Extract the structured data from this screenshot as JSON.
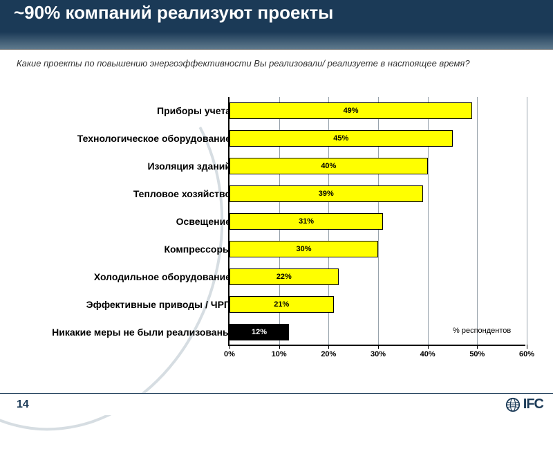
{
  "header": {
    "title": "~90% компаний реализуют проекты"
  },
  "subtitle": "Какие проекты по повышению энергоэффективности Вы реализовали/ реализуете в настоящее время?",
  "chart": {
    "type": "bar-horizontal",
    "xlim": [
      0,
      60
    ],
    "xtick_step": 10,
    "xtick_labels": [
      "0%",
      "10%",
      "20%",
      "30%",
      "40%",
      "50%",
      "60%"
    ],
    "grid_color": "#6b7b88",
    "bar_color_default": "#ffff00",
    "bar_border": "#000000",
    "value_text_default": "#000000",
    "categories": [
      {
        "label": "Приборы учета",
        "value": 49,
        "value_label": "49%"
      },
      {
        "label": "Технологическое оборудование",
        "value": 45,
        "value_label": "45%"
      },
      {
        "label": "Изоляция  зданий",
        "value": 40,
        "value_label": "40%"
      },
      {
        "label": "Тепловое хозяйство",
        "value": 39,
        "value_label": "39%"
      },
      {
        "label": "Освещение",
        "value": 31,
        "value_label": "31%"
      },
      {
        "label": "Компрессоры",
        "value": 30,
        "value_label": "30%"
      },
      {
        "label": "Холодильное оборудование",
        "value": 22,
        "value_label": "22%"
      },
      {
        "label": "Эффективные приводы / ЧРП",
        "value": 21,
        "value_label": "21%"
      },
      {
        "label": "Никакие меры не были реализованы",
        "value": 12,
        "value_label": "12%",
        "bar_color": "#000000",
        "value_text": "#ffffff"
      }
    ],
    "note": "% респондентов"
  },
  "footer": {
    "page_number": "14",
    "logo_text": "IFC"
  },
  "colors": {
    "header_bg_top": "#1b3a57",
    "header_bg_bottom": "#5f7a8d",
    "title_color": "#ffffff"
  }
}
